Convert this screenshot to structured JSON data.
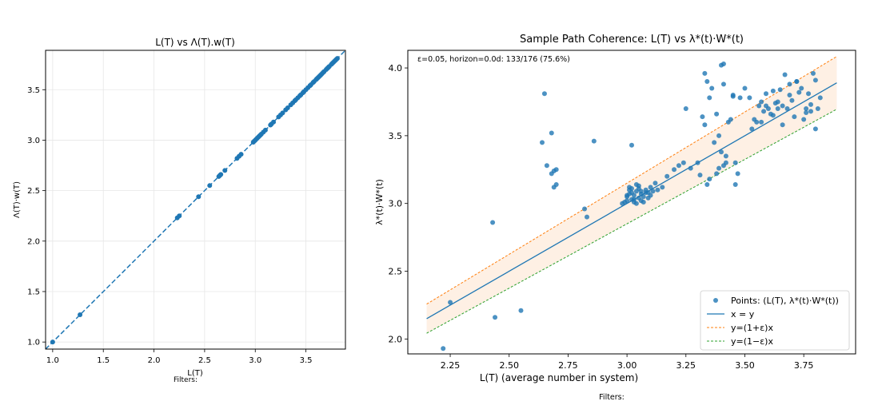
{
  "chart_data": [
    {
      "type": "scatter",
      "title": "L(T) vs Λ(T).w(T)",
      "xlabel": "L(T)",
      "ylabel": "Λ(T)·w(T)",
      "footnote": "Filters:",
      "xlim": [
        0.93,
        3.89
      ],
      "ylim": [
        0.93,
        3.89
      ],
      "xticks": [
        1.0,
        1.5,
        2.0,
        2.5,
        3.0,
        3.5
      ],
      "yticks": [
        1.0,
        1.5,
        2.0,
        2.5,
        3.0,
        3.5
      ],
      "grid": true,
      "colors": {
        "points": "#1f77b4",
        "line": "#1f77b4"
      },
      "series": [
        {
          "name": "points",
          "kind": "scatter",
          "values": [
            1.0,
            1.27,
            2.23,
            2.25,
            2.44,
            2.55,
            2.64,
            2.65,
            2.66,
            2.7,
            2.82,
            2.84,
            2.86,
            2.98,
            2.99,
            3.0,
            3.01,
            3.02,
            3.03,
            3.04,
            3.05,
            3.06,
            3.08,
            3.1,
            3.15,
            3.16,
            3.18,
            3.23,
            3.25,
            3.27,
            3.3,
            3.32,
            3.35,
            3.37,
            3.39,
            3.4,
            3.42,
            3.44,
            3.45,
            3.47,
            3.48,
            3.5,
            3.52,
            3.54,
            3.55,
            3.57,
            3.58,
            3.6,
            3.61,
            3.62,
            3.63,
            3.64,
            3.65,
            3.66,
            3.67,
            3.68,
            3.7,
            3.71,
            3.72,
            3.73,
            3.75,
            3.76,
            3.77,
            3.78,
            3.79,
            3.8,
            3.81
          ]
        },
        {
          "name": "y = x",
          "kind": "dashed-line",
          "x": [
            0.93,
            3.89
          ],
          "y": [
            0.93,
            3.89
          ]
        }
      ]
    },
    {
      "type": "scatter",
      "title": "Sample Path Coherence: L(T) vs λ*(t)·W*(t)",
      "xlabel": "L(T)  (average number in system)",
      "ylabel": "λ*(t)·W*(t)",
      "annotation": "ε=0.05, horizon=0.0d:  133/176  (75.6%)",
      "footnote": "Filters:",
      "xlim": [
        2.07,
        3.97
      ],
      "ylim": [
        1.89,
        4.13
      ],
      "xticks": [
        2.25,
        2.5,
        2.75,
        3.0,
        3.25,
        3.5,
        3.75
      ],
      "yticks": [
        2.0,
        2.5,
        3.0,
        3.5,
        4.0
      ],
      "epsilon": 0.05,
      "band_x": [
        2.15,
        3.89
      ],
      "legend": {
        "placement": "lower-right",
        "entries": [
          "Points: (L(T), λ*(t)·W*(t))",
          "x = y",
          "y=(1+ε)x",
          "y=(1−ε)x"
        ]
      },
      "colors": {
        "points": "#1f77b4",
        "identity": "#1f77b4",
        "upper": "#ff7f0e",
        "lower": "#2ca02c",
        "band": "#fde9d9"
      },
      "points": {
        "x": [
          2.22,
          2.25,
          2.43,
          2.44,
          2.55,
          2.64,
          2.65,
          2.66,
          2.68,
          2.69,
          2.69,
          2.68,
          2.7,
          2.7,
          2.82,
          2.83,
          2.86,
          2.98,
          2.99,
          3.0,
          3.0,
          3.01,
          3.01,
          3.02,
          3.02,
          3.02,
          3.03,
          3.03,
          3.04,
          3.04,
          3.05,
          3.05,
          3.06,
          3.06,
          3.07,
          3.08,
          3.08,
          3.09,
          3.1,
          3.1,
          3.11,
          3.12,
          3.13,
          3.0,
          3.01,
          3.03,
          3.05,
          3.07,
          3.09,
          3.02,
          3.04,
          3.06,
          3.15,
          3.17,
          3.2,
          3.22,
          3.24,
          3.25,
          3.27,
          3.3,
          3.31,
          3.32,
          3.33,
          3.33,
          3.34,
          3.35,
          3.36,
          3.37,
          3.38,
          3.39,
          3.4,
          3.4,
          3.41,
          3.41,
          3.42,
          3.43,
          3.34,
          3.35,
          3.38,
          3.39,
          3.41,
          3.42,
          3.44,
          3.45,
          3.45,
          3.46,
          3.46,
          3.47,
          3.48,
          3.5,
          3.52,
          3.53,
          3.54,
          3.55,
          3.56,
          3.57,
          3.58,
          3.59,
          3.6,
          3.61,
          3.62,
          3.63,
          3.64,
          3.65,
          3.66,
          3.67,
          3.68,
          3.69,
          3.7,
          3.71,
          3.72,
          3.73,
          3.74,
          3.75,
          3.76,
          3.77,
          3.78,
          3.79,
          3.8,
          3.81,
          3.82,
          3.57,
          3.59,
          3.62,
          3.64,
          3.66,
          3.69,
          3.72,
          3.76,
          3.78,
          3.8
        ],
        "y": [
          1.93,
          2.27,
          2.86,
          2.16,
          2.21,
          3.45,
          3.81,
          3.28,
          3.52,
          3.24,
          3.12,
          3.22,
          3.14,
          3.25,
          2.96,
          2.9,
          3.46,
          3.0,
          3.01,
          3.02,
          3.05,
          3.07,
          3.1,
          3.43,
          3.08,
          3.03,
          3.01,
          3.06,
          3.09,
          3.0,
          3.04,
          3.11,
          3.02,
          3.07,
          3.05,
          3.08,
          3.1,
          3.04,
          3.06,
          3.12,
          3.09,
          3.15,
          3.1,
          3.06,
          3.12,
          3.03,
          3.13,
          3.01,
          3.08,
          3.11,
          3.14,
          3.09,
          3.12,
          3.2,
          3.25,
          3.28,
          3.3,
          3.7,
          3.26,
          3.3,
          3.21,
          3.64,
          3.58,
          3.96,
          3.9,
          3.78,
          3.85,
          3.45,
          3.66,
          3.5,
          4.02,
          3.38,
          4.03,
          3.88,
          3.3,
          3.6,
          3.14,
          3.18,
          3.22,
          3.26,
          3.28,
          3.35,
          3.62,
          3.79,
          3.8,
          3.3,
          3.14,
          3.22,
          3.78,
          3.85,
          3.78,
          3.55,
          3.62,
          3.6,
          3.72,
          3.75,
          3.68,
          3.81,
          3.7,
          3.66,
          3.83,
          3.74,
          3.7,
          3.84,
          3.72,
          3.95,
          3.7,
          3.88,
          3.76,
          3.64,
          3.9,
          3.82,
          3.85,
          3.62,
          3.7,
          3.81,
          3.68,
          3.96,
          3.55,
          3.7,
          3.78,
          3.6,
          3.72,
          3.65,
          3.75,
          3.58,
          3.8,
          3.9,
          3.67,
          3.73,
          3.91
        ]
      }
    }
  ]
}
